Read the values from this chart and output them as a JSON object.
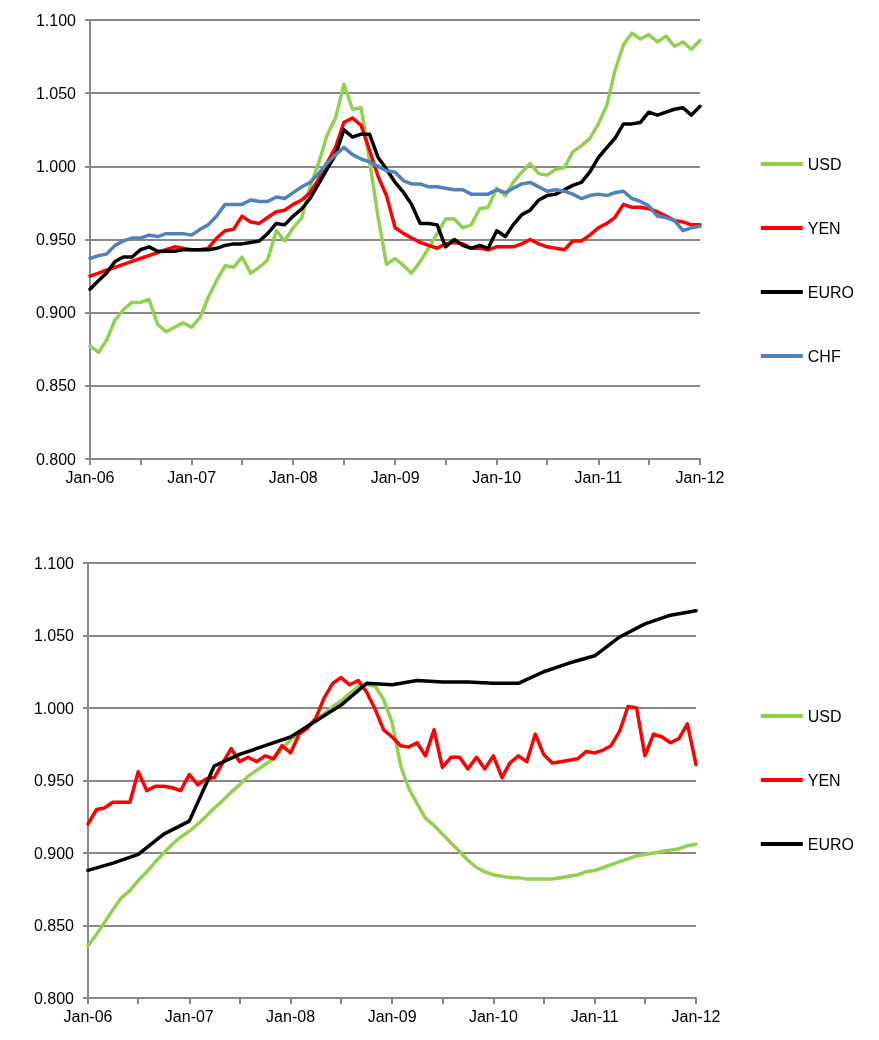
{
  "chart_data": [
    {
      "type": "line",
      "marker": "none",
      "line_style": "solid",
      "grid": "y",
      "legend": "right",
      "x": [
        "2006-01",
        "2006-02",
        "2006-03",
        "2006-04",
        "2006-05",
        "2006-06",
        "2006-07",
        "2006-08",
        "2006-09",
        "2006-10",
        "2006-11",
        "2006-12",
        "2007-01",
        "2007-02",
        "2007-03",
        "2007-04",
        "2007-05",
        "2007-06",
        "2007-07",
        "2007-08",
        "2007-09",
        "2007-10",
        "2007-11",
        "2007-12",
        "2008-01",
        "2008-02",
        "2008-03",
        "2008-04",
        "2008-05",
        "2008-06",
        "2008-07",
        "2008-08",
        "2008-09",
        "2008-10",
        "2008-11",
        "2008-12",
        "2009-01",
        "2009-02",
        "2009-03",
        "2009-04",
        "2009-05",
        "2009-06",
        "2009-07",
        "2009-08",
        "2009-09",
        "2009-10",
        "2009-11",
        "2009-12",
        "2010-01",
        "2010-02",
        "2010-03",
        "2010-04",
        "2010-05",
        "2010-06",
        "2010-07",
        "2010-08",
        "2010-09",
        "2010-10",
        "2010-11",
        "2010-12",
        "2011-01",
        "2011-02",
        "2011-03",
        "2011-04",
        "2011-05",
        "2011-06",
        "2011-07",
        "2011-08",
        "2011-09",
        "2011-10",
        "2011-11",
        "2011-12",
        "2012-01"
      ],
      "xlim": [
        "2006-01",
        "2012-01"
      ],
      "xticks": [
        {
          "value": "2006-01",
          "label": "Jan-06"
        },
        {
          "value": "2006-07",
          "label": null
        },
        {
          "value": "2007-01",
          "label": "Jan-07"
        },
        {
          "value": "2007-07",
          "label": null
        },
        {
          "value": "2008-01",
          "label": "Jan-08"
        },
        {
          "value": "2008-07",
          "label": null
        },
        {
          "value": "2009-01",
          "label": "Jan-09"
        },
        {
          "value": "2009-07",
          "label": null
        },
        {
          "value": "2010-01",
          "label": "Jan-10"
        },
        {
          "value": "2010-07",
          "label": null
        },
        {
          "value": "2011-01",
          "label": "Jan-11"
        },
        {
          "value": "2011-07",
          "label": null
        },
        {
          "value": "2012-01",
          "label": "Jan-12"
        }
      ],
      "ylim": [
        0.8,
        1.1
      ],
      "yticks": [
        {
          "value": 0.8,
          "label": "0.800"
        },
        {
          "value": 0.85,
          "label": "0.850"
        },
        {
          "value": 0.9,
          "label": "0.900"
        },
        {
          "value": 0.95,
          "label": "0.950"
        },
        {
          "value": 1.0,
          "label": "1.000"
        },
        {
          "value": 1.05,
          "label": "1.050"
        },
        {
          "value": 1.1,
          "label": "1.100"
        }
      ],
      "series": [
        {
          "name": "USD",
          "color": "#92d050",
          "values": [
            0.877,
            0.873,
            0.881,
            0.895,
            0.902,
            0.907,
            0.907,
            0.909,
            0.892,
            0.887,
            0.89,
            0.893,
            0.89,
            0.897,
            0.91,
            0.922,
            0.932,
            0.931,
            0.938,
            0.927,
            0.931,
            0.936,
            0.956,
            0.949,
            0.958,
            0.965,
            0.986,
            1.002,
            1.021,
            1.033,
            1.056,
            1.039,
            1.04,
            1.004,
            0.965,
            0.933,
            0.937,
            0.932,
            0.927,
            0.935,
            0.944,
            0.954,
            0.964,
            0.964,
            0.958,
            0.96,
            0.971,
            0.972,
            0.985,
            0.98,
            0.989,
            0.996,
            1.002,
            0.995,
            0.994,
            0.998,
            0.999,
            1.01,
            1.014,
            1.019,
            1.029,
            1.042,
            1.065,
            1.083,
            1.091,
            1.087,
            1.09,
            1.085,
            1.089,
            1.082,
            1.085,
            1.08,
            1.086
          ]
        },
        {
          "name": "YEN",
          "color": "#ff0000",
          "values": [
            0.925,
            0.927,
            0.929,
            0.931,
            0.933,
            0.935,
            0.937,
            0.939,
            0.941,
            0.943,
            0.945,
            0.944,
            0.943,
            0.943,
            0.944,
            0.951,
            0.956,
            0.957,
            0.966,
            0.962,
            0.961,
            0.965,
            0.969,
            0.97,
            0.974,
            0.977,
            0.982,
            0.991,
            1.002,
            1.013,
            1.03,
            1.033,
            1.028,
            1.011,
            0.993,
            0.98,
            0.958,
            0.954,
            0.951,
            0.948,
            0.946,
            0.944,
            0.947,
            0.948,
            0.947,
            0.944,
            0.944,
            0.943,
            0.945,
            0.945,
            0.945,
            0.947,
            0.95,
            0.947,
            0.945,
            0.944,
            0.943,
            0.949,
            0.949,
            0.953,
            0.958,
            0.961,
            0.965,
            0.974,
            0.972,
            0.972,
            0.971,
            0.969,
            0.966,
            0.963,
            0.962,
            0.96,
            0.96
          ]
        },
        {
          "name": "EURO",
          "color": "#000000",
          "values": [
            0.916,
            0.922,
            0.927,
            0.935,
            0.938,
            0.938,
            0.943,
            0.945,
            0.942,
            0.942,
            0.942,
            0.943,
            0.943,
            0.943,
            0.943,
            0.944,
            0.946,
            0.947,
            0.947,
            0.948,
            0.949,
            0.954,
            0.961,
            0.96,
            0.966,
            0.971,
            0.978,
            0.988,
            0.998,
            1.008,
            1.025,
            1.02,
            1.022,
            1.022,
            1.006,
            0.998,
            0.989,
            0.982,
            0.974,
            0.961,
            0.961,
            0.96,
            0.945,
            0.95,
            0.946,
            0.944,
            0.946,
            0.944,
            0.956,
            0.952,
            0.96,
            0.967,
            0.97,
            0.977,
            0.98,
            0.981,
            0.984,
            0.987,
            0.989,
            0.996,
            1.006,
            1.013,
            1.019,
            1.029,
            1.029,
            1.03,
            1.037,
            1.035,
            1.037,
            1.039,
            1.04,
            1.035,
            1.041
          ]
        },
        {
          "name": "CHF",
          "color": "#4f81bd",
          "values": [
            0.937,
            0.939,
            0.94,
            0.946,
            0.949,
            0.951,
            0.951,
            0.953,
            0.952,
            0.954,
            0.954,
            0.954,
            0.953,
            0.957,
            0.96,
            0.966,
            0.974,
            0.974,
            0.974,
            0.977,
            0.976,
            0.976,
            0.979,
            0.978,
            0.982,
            0.986,
            0.989,
            0.995,
            1.002,
            1.008,
            1.013,
            1.008,
            1.005,
            1.003,
            1.0,
            0.997,
            0.996,
            0.99,
            0.988,
            0.988,
            0.986,
            0.986,
            0.985,
            0.984,
            0.984,
            0.981,
            0.981,
            0.981,
            0.984,
            0.982,
            0.985,
            0.988,
            0.989,
            0.986,
            0.983,
            0.984,
            0.983,
            0.981,
            0.978,
            0.98,
            0.981,
            0.98,
            0.982,
            0.983,
            0.978,
            0.976,
            0.973,
            0.966,
            0.965,
            0.963,
            0.956,
            0.958,
            0.959
          ]
        }
      ]
    },
    {
      "type": "line",
      "marker": "none",
      "line_style": "solid",
      "grid": "y",
      "legend": "right",
      "x": [
        "2006-01",
        "2006-02",
        "2006-03",
        "2006-04",
        "2006-05",
        "2006-06",
        "2006-07",
        "2006-08",
        "2006-09",
        "2006-10",
        "2006-11",
        "2006-12",
        "2007-01",
        "2007-02",
        "2007-03",
        "2007-04",
        "2007-05",
        "2007-06",
        "2007-07",
        "2007-08",
        "2007-09",
        "2007-10",
        "2007-11",
        "2007-12",
        "2008-01",
        "2008-02",
        "2008-03",
        "2008-04",
        "2008-05",
        "2008-06",
        "2008-07",
        "2008-08",
        "2008-09",
        "2008-10",
        "2008-11",
        "2008-12",
        "2009-01",
        "2009-02",
        "2009-03",
        "2009-04",
        "2009-05",
        "2009-06",
        "2009-07",
        "2009-08",
        "2009-09",
        "2009-10",
        "2009-11",
        "2009-12",
        "2010-01",
        "2010-02",
        "2010-03",
        "2010-04",
        "2010-05",
        "2010-06",
        "2010-07",
        "2010-08",
        "2010-09",
        "2010-10",
        "2010-11",
        "2010-12",
        "2011-01",
        "2011-02",
        "2011-03",
        "2011-04",
        "2011-05",
        "2011-06",
        "2011-07",
        "2011-08",
        "2011-09",
        "2011-10",
        "2011-11",
        "2011-12",
        "2012-01"
      ],
      "xlim": [
        "2006-01",
        "2012-01"
      ],
      "xticks": [
        {
          "value": "2006-01",
          "label": "Jan-06"
        },
        {
          "value": "2006-07",
          "label": null
        },
        {
          "value": "2007-01",
          "label": "Jan-07"
        },
        {
          "value": "2007-07",
          "label": null
        },
        {
          "value": "2008-01",
          "label": "Jan-08"
        },
        {
          "value": "2008-07",
          "label": null
        },
        {
          "value": "2009-01",
          "label": "Jan-09"
        },
        {
          "value": "2009-07",
          "label": null
        },
        {
          "value": "2010-01",
          "label": "Jan-10"
        },
        {
          "value": "2010-07",
          "label": null
        },
        {
          "value": "2011-01",
          "label": "Jan-11"
        },
        {
          "value": "2011-07",
          "label": null
        },
        {
          "value": "2012-01",
          "label": "Jan-12"
        }
      ],
      "ylim": [
        0.8,
        1.1
      ],
      "yticks": [
        {
          "value": 0.8,
          "label": "0.800"
        },
        {
          "value": 0.85,
          "label": "0.850"
        },
        {
          "value": 0.9,
          "label": "0.900"
        },
        {
          "value": 0.95,
          "label": "0.950"
        },
        {
          "value": 1.0,
          "label": "1.000"
        },
        {
          "value": 1.05,
          "label": "1.050"
        },
        {
          "value": 1.1,
          "label": "1.100"
        }
      ],
      "series": [
        {
          "name": "USD",
          "color": "#92d050",
          "values": [
            0.836,
            0.844,
            0.852,
            0.861,
            0.869,
            0.874,
            0.881,
            0.887,
            0.894,
            0.9,
            0.906,
            0.911,
            0.915,
            0.92,
            0.925,
            0.931,
            0.936,
            0.942,
            0.947,
            0.953,
            0.957,
            0.961,
            0.965,
            0.972,
            0.978,
            0.983,
            0.987,
            0.992,
            0.996,
            1.001,
            1.005,
            1.01,
            1.015,
            1.016,
            1.015,
            1.006,
            0.99,
            0.96,
            0.945,
            0.934,
            0.924,
            0.919,
            0.913,
            0.907,
            0.901,
            0.895,
            0.89,
            0.887,
            0.885,
            0.884,
            0.883,
            0.883,
            0.882,
            0.882,
            0.882,
            0.882,
            0.883,
            0.884,
            0.885,
            0.887,
            0.888,
            0.89,
            0.892,
            0.894,
            0.896,
            0.898,
            0.899,
            0.9,
            0.901,
            0.902,
            0.903,
            0.905,
            0.906
          ]
        },
        {
          "name": "YEN",
          "color": "#ff0000",
          "values": [
            0.92,
            0.93,
            0.931,
            0.935,
            0.935,
            0.935,
            0.956,
            0.943,
            0.946,
            0.946,
            0.945,
            0.943,
            0.954,
            0.947,
            0.951,
            0.952,
            0.962,
            0.972,
            0.963,
            0.966,
            0.963,
            0.967,
            0.965,
            0.974,
            0.969,
            0.982,
            0.986,
            0.993,
            1.007,
            1.017,
            1.021,
            1.016,
            1.019,
            1.011,
            0.999,
            0.985,
            0.98,
            0.974,
            0.973,
            0.976,
            0.967,
            0.985,
            0.959,
            0.966,
            0.966,
            0.958,
            0.966,
            0.958,
            0.967,
            0.952,
            0.962,
            0.967,
            0.963,
            0.982,
            0.968,
            0.962,
            0.963,
            0.964,
            0.965,
            0.97,
            0.969,
            0.971,
            0.974,
            0.984,
            1.001,
            1.0,
            0.967,
            0.982,
            0.98,
            0.976,
            0.979,
            0.989,
            0.961
          ]
        },
        {
          "name": "EURO",
          "color": "#000000",
          "x": [
            "2006-01",
            "2006-04",
            "2006-07",
            "2006-10",
            "2007-01",
            "2007-04",
            "2007-07",
            "2007-10",
            "2008-01",
            "2008-04",
            "2008-07",
            "2008-10",
            "2009-01",
            "2009-04",
            "2009-07",
            "2009-10",
            "2010-01",
            "2010-04",
            "2010-07",
            "2010-10",
            "2011-01",
            "2011-04",
            "2011-07",
            "2011-10",
            "2012-01"
          ],
          "values": [
            0.888,
            0.893,
            0.899,
            0.913,
            0.922,
            0.96,
            0.968,
            0.974,
            0.98,
            0.991,
            1.002,
            1.017,
            1.016,
            1.019,
            1.018,
            1.018,
            1.017,
            1.017,
            1.025,
            1.031,
            1.036,
            1.049,
            1.058,
            1.064,
            1.067
          ]
        }
      ]
    }
  ]
}
